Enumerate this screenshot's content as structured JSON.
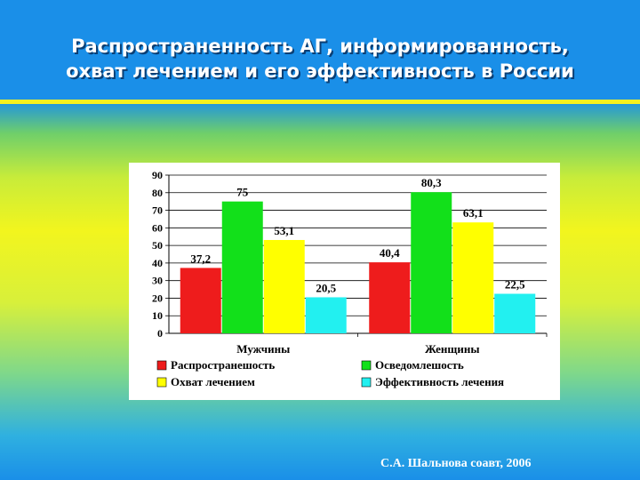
{
  "slide": {
    "title_line1": "Распространенность АГ, информированность,",
    "title_line2": "охват лечением и его эффективность в России",
    "credit": "С.А. Шальнова  соавт, 2006"
  },
  "chart_data": {
    "type": "bar",
    "title": "",
    "xlabel": "",
    "ylabel": "",
    "categories": [
      "Мужчины",
      "Женщины"
    ],
    "ylim": [
      0,
      90
    ],
    "yticks": [
      0,
      10,
      20,
      30,
      40,
      50,
      60,
      70,
      80,
      90
    ],
    "grid": true,
    "legend": "bottom",
    "series": [
      {
        "name": "Распространешость",
        "values": [
          37.2,
          40.4
        ],
        "labels": [
          "37,2",
          "40,4"
        ],
        "color": "#ee1c1c"
      },
      {
        "name": "Осведомлешость",
        "values": [
          75,
          80.3
        ],
        "labels": [
          "75",
          "80,3"
        ],
        "color": "#12e01a"
      },
      {
        "name": "Охват лечением",
        "values": [
          53.1,
          63.1
        ],
        "labels": [
          "53,1",
          "63,1"
        ],
        "color": "#ffff00"
      },
      {
        "name": "Эффективность лечения",
        "values": [
          20.5,
          22.5
        ],
        "labels": [
          "20,5",
          "22,5"
        ],
        "color": "#22f0f0"
      }
    ]
  }
}
